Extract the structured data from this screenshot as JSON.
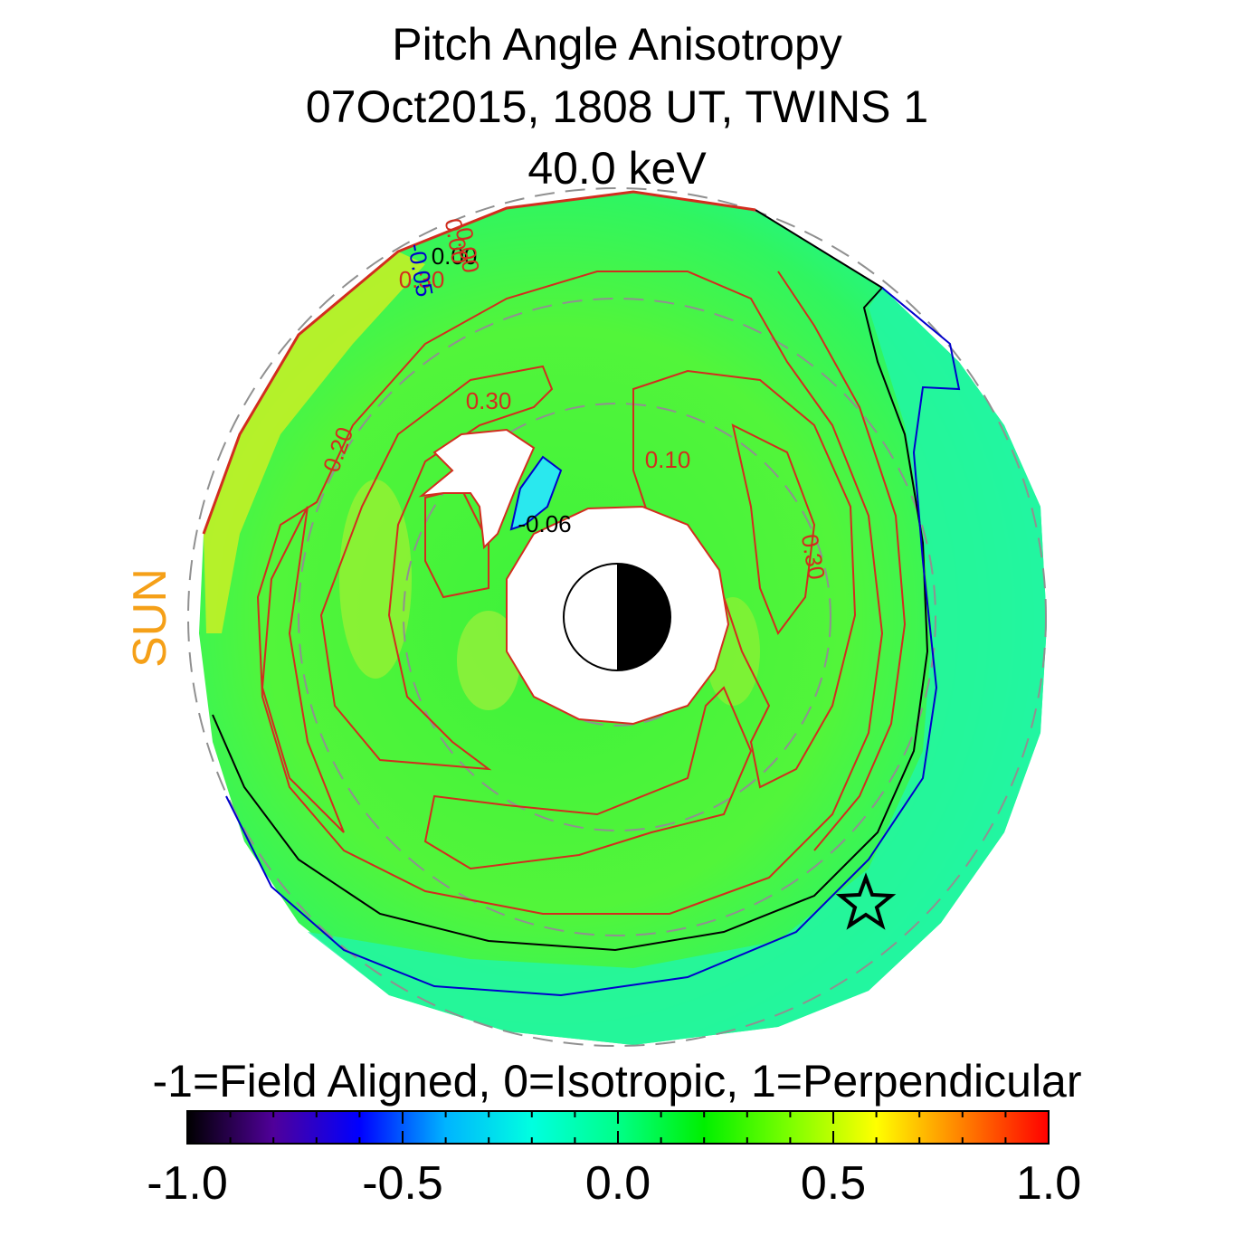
{
  "title": {
    "line1": "Pitch Angle Anisotropy",
    "line2": "07Oct2015, 1808 UT,  TWINS 1",
    "line3": "40.0 keV"
  },
  "sun_label": "SUN",
  "sun_color": "#f5a018",
  "colorbar": {
    "description": "-1=Field Aligned, 0=Isotropic, 1=Perpendicular",
    "min": -1.0,
    "max": 1.0,
    "tick_labels": [
      "-1.0",
      "-0.5",
      "0.0",
      "0.5",
      "1.0"
    ],
    "tick_values": [
      -1.0,
      -0.5,
      0.0,
      0.5,
      1.0
    ],
    "colormap": [
      "#000000",
      "#50009a",
      "#0000ff",
      "#00b4ff",
      "#00ffe0",
      "#00ff88",
      "#00f000",
      "#7dff00",
      "#ffff00",
      "#ff8000",
      "#ff0000"
    ]
  },
  "chart_data": {
    "type": "heatmap",
    "projection": "polar equatorial map, Sun to the left",
    "value_range": [
      -1.0,
      1.0
    ],
    "contour_labels": [
      {
        "text": "0.30",
        "color": "#d22d1e"
      },
      {
        "text": "0.20",
        "color": "#d22d1e"
      },
      {
        "text": "0.10",
        "color": "#d22d1e"
      },
      {
        "text": "0.30",
        "color": "#d22d1e"
      },
      {
        "text": "0.00",
        "color": "#000000"
      },
      {
        "text": "0.00",
        "color": "#d22d1e"
      },
      {
        "text": "0.30",
        "color": "#d22d1e"
      },
      {
        "text": "-0.05",
        "color": "#0000cc"
      },
      {
        "text": "0.00",
        "color": "#d22d1e"
      },
      {
        "text": "-0.06",
        "color": "#000000"
      }
    ],
    "contour_colors": {
      "positive": "#d22d1e",
      "zero": "#000000",
      "negative": "#0000cc"
    },
    "marker": "star",
    "earth": "day/night disk"
  }
}
